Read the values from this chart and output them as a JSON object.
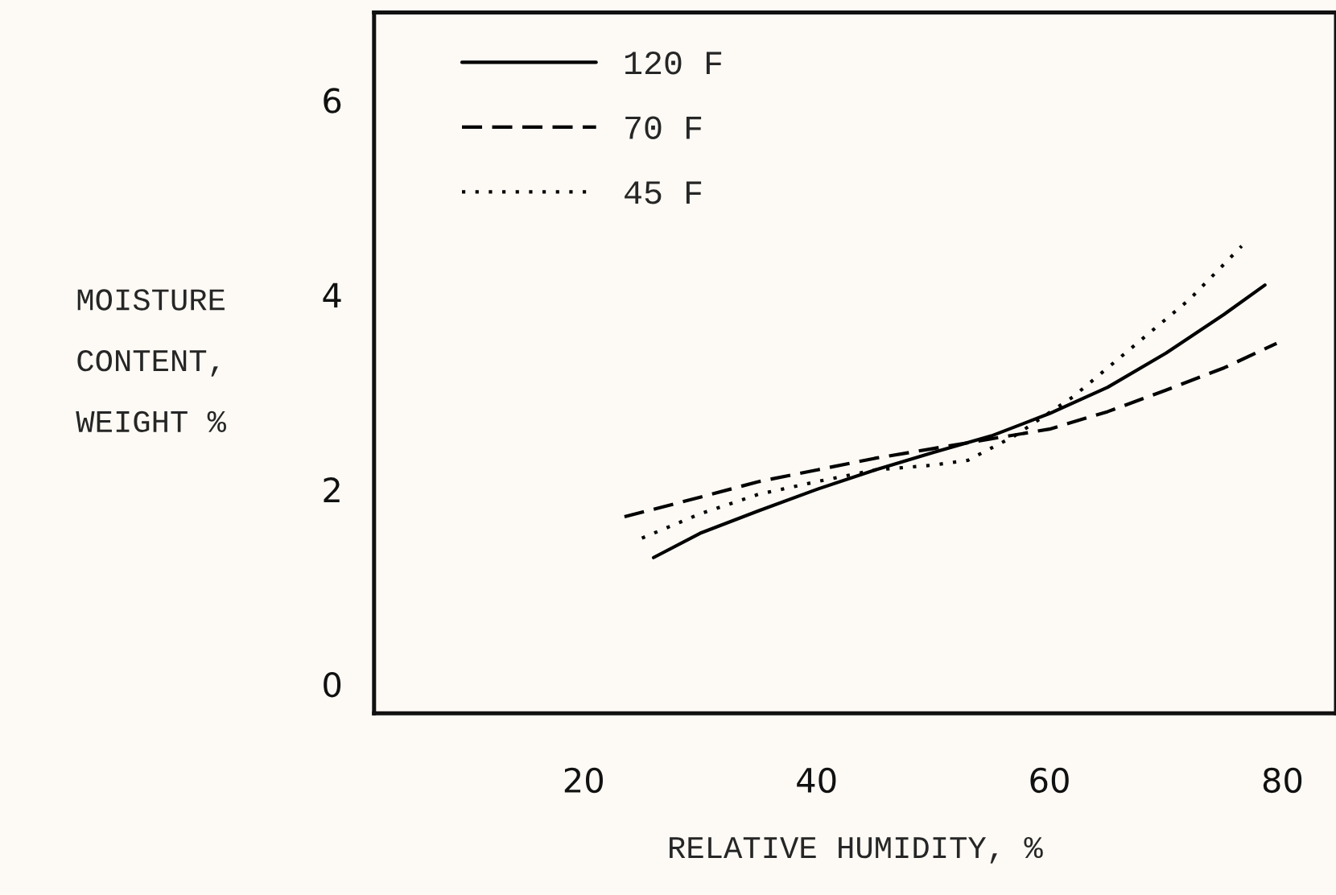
{
  "chart_data": {
    "type": "line",
    "xlabel": "RELATIVE HUMIDITY, %",
    "ylabel": "MOISTURE\nCONTENT,\nWEIGHT %",
    "xlim": [
      2,
      84.6
    ],
    "ylim": [
      -0.3,
      6.9
    ],
    "xticks": [
      20,
      40,
      60,
      80
    ],
    "yticks": [
      0,
      2,
      4,
      6
    ],
    "grid": false,
    "legend": "top left",
    "marker": "none",
    "series": [
      {
        "name": "120 F",
        "color": "#000000",
        "line_style": "solid",
        "x": [
          26,
          30,
          35,
          40,
          45,
          50,
          55,
          60,
          65,
          70,
          75,
          78.5
        ],
        "values": [
          1.3,
          1.55,
          1.78,
          2.0,
          2.2,
          2.38,
          2.55,
          2.78,
          3.05,
          3.4,
          3.8,
          4.1
        ]
      },
      {
        "name": "70 F",
        "color": "#000000",
        "line_style": "dashed",
        "x": [
          23.5,
          30,
          35,
          40,
          45,
          50,
          55,
          60,
          65,
          70,
          75,
          79.5
        ],
        "values": [
          1.72,
          1.92,
          2.08,
          2.2,
          2.32,
          2.42,
          2.52,
          2.62,
          2.8,
          3.02,
          3.25,
          3.5
        ]
      },
      {
        "name": "45 F",
        "color": "#000000",
        "line_style": "dotted",
        "x": [
          25,
          30,
          35,
          40,
          45,
          50,
          53,
          57,
          62,
          67,
          72,
          76.5
        ],
        "values": [
          1.5,
          1.75,
          1.95,
          2.08,
          2.2,
          2.25,
          2.3,
          2.55,
          2.95,
          3.45,
          3.95,
          4.5
        ]
      }
    ]
  }
}
